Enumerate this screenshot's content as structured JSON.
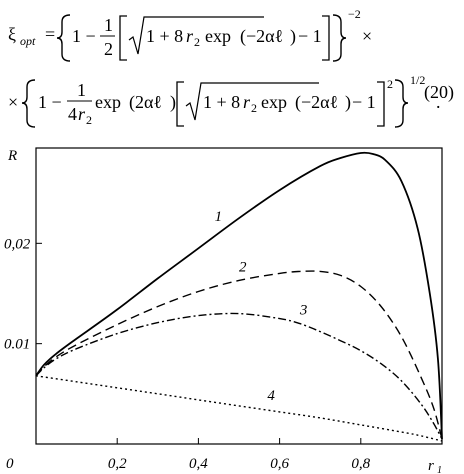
{
  "equation": {
    "number": "(20)",
    "lhs": "ξ",
    "lhs_sub": "opt",
    "line1_prefix": "1 −",
    "frac_num": "1",
    "frac_den": "2",
    "sqrt_body_1": "1 + 8",
    "r2": "r",
    "r2_sub": "2",
    "exp_word": "exp",
    "exp_arg_1": "−2αℓ",
    "minus_one": "− 1",
    "outer_exp_1": "−2",
    "times": "×",
    "line2_lead": "×",
    "line2_prefix": "1 −",
    "frac2_num": "1",
    "frac2_den": "4",
    "exp_arg_2": "2αℓ",
    "sq": "2",
    "outer_exp_2": "1/2",
    "period": "."
  },
  "chart_data": {
    "type": "line",
    "xlabel": "r",
    "xlabel_sub": "1",
    "ylabel": "R",
    "xlim": [
      0,
      1
    ],
    "ylim": [
      0,
      0.0295
    ],
    "x_ticks": [
      {
        "value": 0,
        "label": "0"
      },
      {
        "value": 0.2,
        "label": "0,2"
      },
      {
        "value": 0.4,
        "label": "0,4"
      },
      {
        "value": 0.6,
        "label": "0,6"
      },
      {
        "value": 0.8,
        "label": "0,8"
      }
    ],
    "y_ticks": [
      {
        "value": 0.01,
        "label": "0.01"
      },
      {
        "value": 0.02,
        "label": "0,02"
      }
    ],
    "series": [
      {
        "name": "1",
        "style": "solid",
        "x": [
          0,
          0.02,
          0.05,
          0.1,
          0.2,
          0.3,
          0.4,
          0.5,
          0.6,
          0.7,
          0.75,
          0.8,
          0.83,
          0.86,
          0.9,
          0.94,
          0.97,
          0.99,
          1.0
        ],
        "y": [
          0.0068,
          0.0079,
          0.009,
          0.0105,
          0.0134,
          0.0165,
          0.0195,
          0.0225,
          0.0253,
          0.0277,
          0.0285,
          0.029,
          0.0289,
          0.0283,
          0.0262,
          0.0215,
          0.015,
          0.0085,
          0.0005
        ]
      },
      {
        "name": "2",
        "style": "dashed",
        "x": [
          0,
          0.02,
          0.05,
          0.1,
          0.2,
          0.3,
          0.4,
          0.5,
          0.6,
          0.65,
          0.7,
          0.75,
          0.8,
          0.85,
          0.9,
          0.95,
          0.98,
          1.0
        ],
        "y": [
          0.0068,
          0.0077,
          0.0087,
          0.0099,
          0.0119,
          0.0137,
          0.0152,
          0.0163,
          0.017,
          0.0172,
          0.0172,
          0.0168,
          0.0157,
          0.0137,
          0.0107,
          0.0065,
          0.0035,
          0.0005
        ]
      },
      {
        "name": "3",
        "style": "dashdot",
        "x": [
          0,
          0.02,
          0.05,
          0.1,
          0.2,
          0.3,
          0.4,
          0.5,
          0.6,
          0.65,
          0.7,
          0.75,
          0.8,
          0.85,
          0.9,
          0.95,
          0.98,
          1.0
        ],
        "y": [
          0.0068,
          0.0076,
          0.0085,
          0.0095,
          0.011,
          0.0121,
          0.0128,
          0.013,
          0.0125,
          0.012,
          0.0112,
          0.0103,
          0.0093,
          0.008,
          0.0063,
          0.0039,
          0.002,
          0.0005
        ]
      },
      {
        "name": "4",
        "style": "dotted",
        "x": [
          0,
          0.1,
          0.2,
          0.3,
          0.4,
          0.5,
          0.6,
          0.7,
          0.8,
          0.9,
          0.95,
          1.0
        ],
        "y": [
          0.0068,
          0.0062,
          0.0056,
          0.005,
          0.0044,
          0.0038,
          0.0032,
          0.0026,
          0.0019,
          0.0012,
          0.0008,
          0.0003
        ]
      }
    ],
    "curve_labels": [
      {
        "series": "1",
        "text": "1",
        "x": 0.44,
        "y": 0.0222
      },
      {
        "series": "2",
        "text": "2",
        "x": 0.5,
        "y": 0.0172
      },
      {
        "series": "3",
        "text": "3",
        "x": 0.65,
        "y": 0.0129
      },
      {
        "series": "4",
        "text": "4",
        "x": 0.57,
        "y": 0.0044
      }
    ]
  }
}
